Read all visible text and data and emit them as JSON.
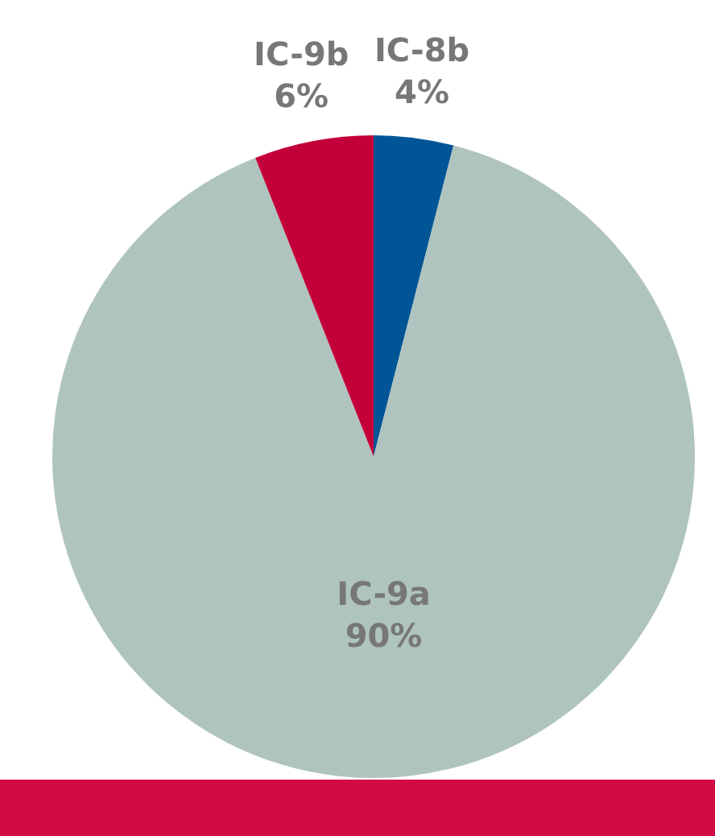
{
  "chart_data": {
    "type": "pie",
    "categories": [
      "IC-8b",
      "IC-9a",
      "IC-9b"
    ],
    "values": [
      4,
      90,
      6
    ],
    "value_labels": [
      "4%",
      "90%",
      "6%"
    ],
    "colors": [
      "#005596",
      "#afc4bf",
      "#c4003a"
    ],
    "legend": false
  }
}
